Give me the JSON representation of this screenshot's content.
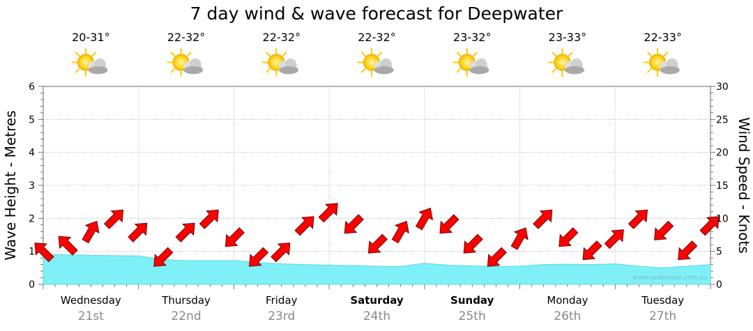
{
  "chart_data": {
    "type": "area+arrows",
    "title": "7 day wind & wave forecast for Deepwater",
    "ylabel_left": "Wave Height - Metres",
    "ylabel_right": "Wind Speed - Knots",
    "ylim_left": [
      0,
      6
    ],
    "ylim_right": [
      0,
      30
    ],
    "yticks_left": [
      "0",
      "1",
      "2",
      "3",
      "4",
      "5",
      "6"
    ],
    "yticks_right": [
      "0",
      "5",
      "10",
      "15",
      "20",
      "25",
      "30"
    ],
    "days": [
      {
        "name": "Wednesday",
        "date": "21st",
        "temp": "20-31°",
        "bold": false
      },
      {
        "name": "Thursday",
        "date": "22nd",
        "temp": "22-32°",
        "bold": false
      },
      {
        "name": "Friday",
        "date": "23rd",
        "temp": "22-32°",
        "bold": false
      },
      {
        "name": "Saturday",
        "date": "24th",
        "temp": "22-32°",
        "bold": true
      },
      {
        "name": "Sunday",
        "date": "25th",
        "temp": "23-32°",
        "bold": true
      },
      {
        "name": "Monday",
        "date": "26th",
        "temp": "23-33°",
        "bold": false
      },
      {
        "name": "Tuesday",
        "date": "27th",
        "temp": "22-33°",
        "bold": false
      }
    ],
    "wave_height_series": {
      "name": "Wave Height (m)",
      "x_hours": [
        0,
        6,
        12,
        18,
        24,
        30,
        36,
        42,
        48,
        54,
        60,
        66,
        72,
        78,
        84,
        90,
        96,
        102,
        108,
        114,
        120,
        126,
        132,
        138,
        144,
        150,
        156,
        162,
        168
      ],
      "values": [
        0.9,
        0.9,
        0.88,
        0.87,
        0.86,
        0.75,
        0.72,
        0.72,
        0.72,
        0.66,
        0.62,
        0.6,
        0.58,
        0.57,
        0.55,
        0.54,
        0.64,
        0.58,
        0.56,
        0.54,
        0.55,
        0.6,
        0.61,
        0.6,
        0.62,
        0.55,
        0.5,
        0.55,
        0.6
      ]
    },
    "wind_speed_series": {
      "name": "Wind Speed (knots)",
      "x_hours": [
        0,
        6,
        12,
        18,
        24,
        30,
        36,
        42,
        48,
        54,
        60,
        66,
        72,
        78,
        84,
        90,
        96,
        102,
        108,
        114,
        120,
        126,
        132,
        138,
        144,
        150,
        156,
        162,
        168
      ],
      "values": [
        5,
        6,
        8,
        10,
        8,
        4,
        8,
        10,
        7,
        4,
        5,
        9,
        11,
        9,
        6,
        8,
        10,
        9,
        6,
        4,
        7,
        10,
        7,
        5,
        7,
        10,
        8,
        5,
        9
      ],
      "directions_deg": [
        225,
        225,
        300,
        315,
        315,
        135,
        315,
        315,
        135,
        135,
        315,
        315,
        315,
        135,
        135,
        300,
        300,
        135,
        135,
        135,
        300,
        315,
        135,
        135,
        315,
        315,
        135,
        135,
        315
      ]
    },
    "credit": "www.seabreeze.com.au"
  },
  "colors": {
    "wave_fill": "#7ff0f7",
    "arrow_fill": "#ff0000",
    "arrow_stroke": "#6b0000",
    "grid": "#9a9a9a",
    "sun": "#ffcc00",
    "cloud": "#b5b5b5"
  },
  "icons": [
    "partly-cloudy-icon"
  ]
}
